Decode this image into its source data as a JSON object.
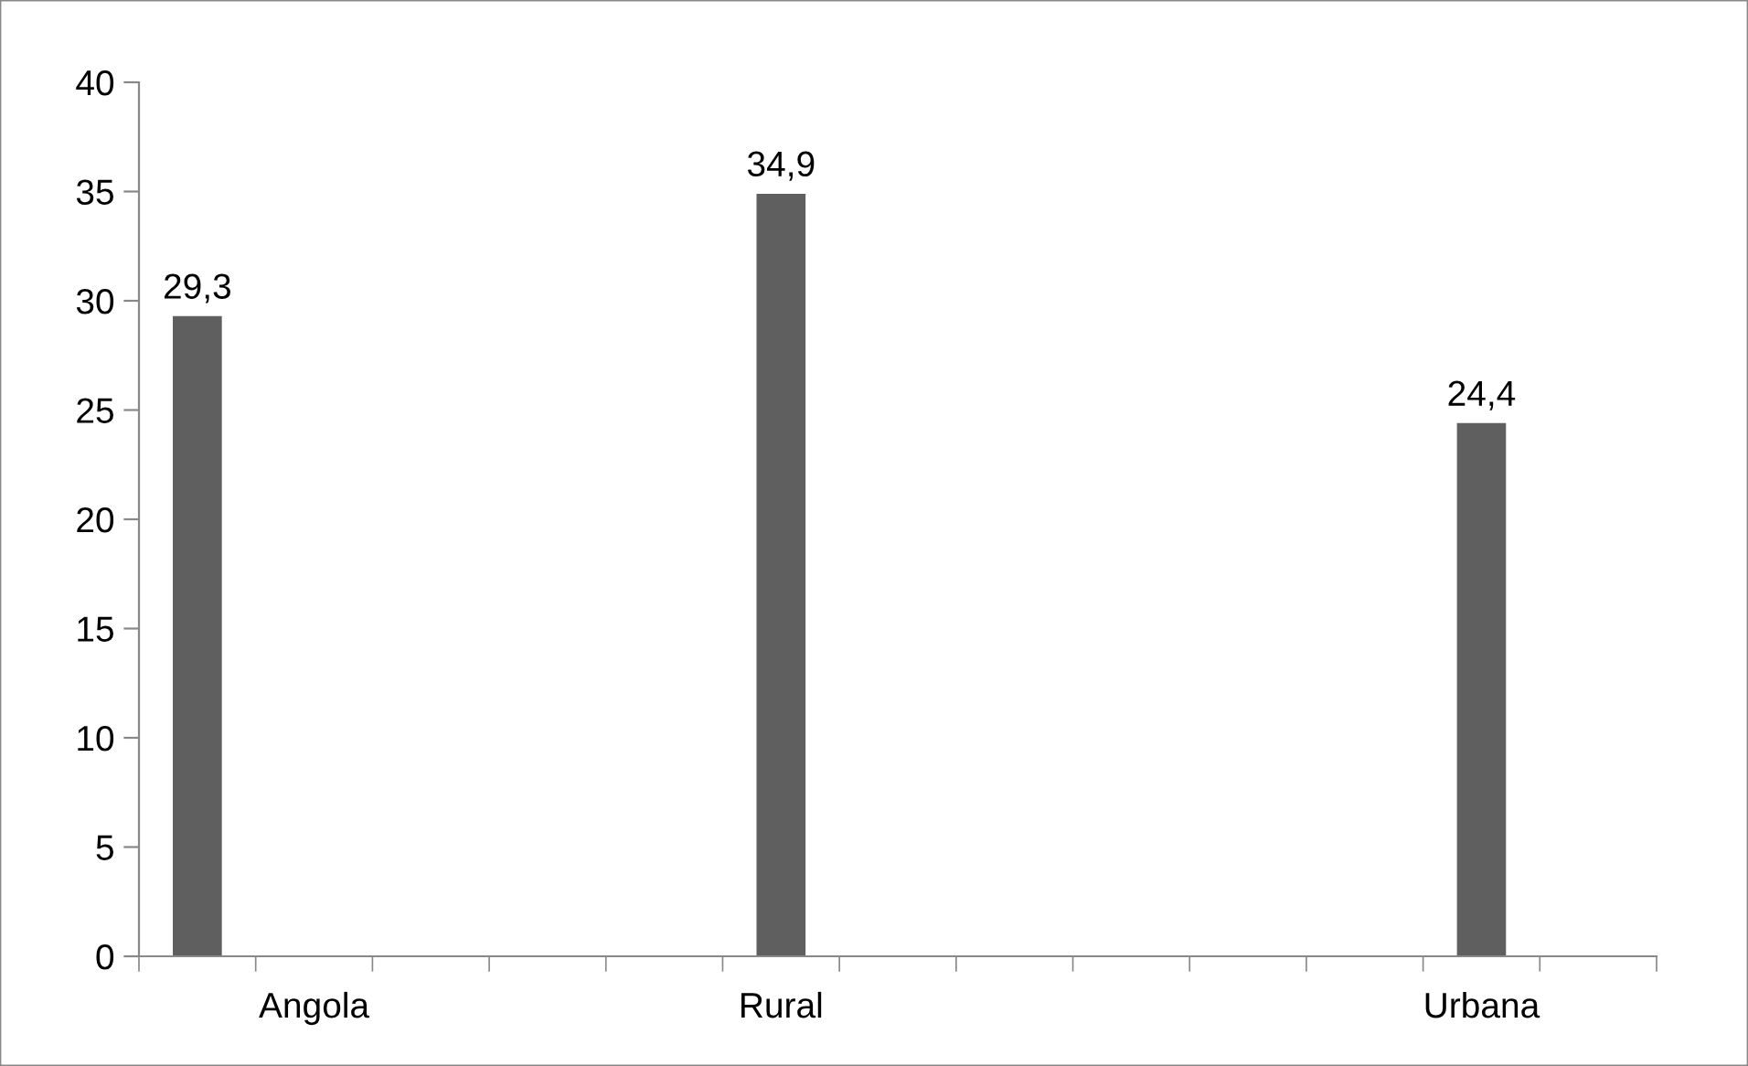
{
  "chart_data": {
    "type": "bar",
    "categories": [
      null,
      "Angola",
      null,
      null,
      null,
      "Rural",
      null,
      null,
      null,
      null,
      null,
      "Urbana",
      null
    ],
    "values": [
      29.3,
      null,
      null,
      null,
      null,
      34.9,
      null,
      null,
      null,
      null,
      null,
      24.4,
      null
    ],
    "color": "#5f5f5f",
    "ylim": [
      0,
      40
    ],
    "yticks": [
      0,
      5,
      10,
      15,
      20,
      25,
      30,
      35,
      40
    ],
    "grid": false,
    "legend": false,
    "value_labels": [
      "29,3",
      null,
      null,
      null,
      null,
      "34,9",
      null,
      null,
      null,
      null,
      null,
      "24,4",
      null
    ]
  }
}
